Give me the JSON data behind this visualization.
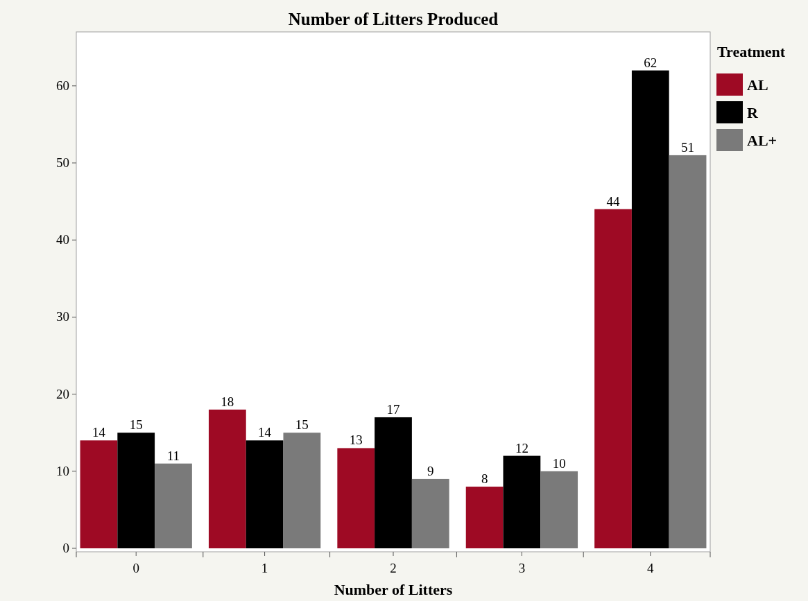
{
  "chart_data": {
    "type": "bar",
    "title": "Number of Litters Produced",
    "xlabel": "Number of Litters",
    "legend_title": "Treatment",
    "categories": [
      "0",
      "1",
      "2",
      "3",
      "4"
    ],
    "series": [
      {
        "name": "AL",
        "color": "#9e0a24",
        "values": [
          14,
          18,
          13,
          8,
          44
        ]
      },
      {
        "name": "R",
        "color": "#000000",
        "values": [
          15,
          14,
          17,
          12,
          62
        ]
      },
      {
        "name": "AL+",
        "color": "#7a7a7a",
        "values": [
          11,
          15,
          9,
          10,
          51
        ]
      }
    ],
    "ylim": [
      0,
      67
    ],
    "yticks": [
      0,
      10,
      20,
      30,
      40,
      50,
      60
    ],
    "grid": false,
    "legend": "right",
    "data_labels": true
  }
}
